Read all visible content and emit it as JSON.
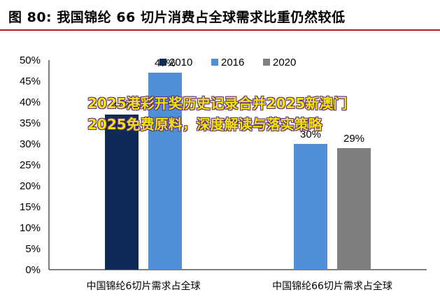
{
  "title": "图 80:  我国锦纶 66 切片消费占全球需求比重仍然较低",
  "overlay_text": "2025港彩开奖历史记录合并2025新澳门2025免费原料，深度解读与落实策略",
  "chart_data": {
    "type": "bar",
    "categories": [
      "中国锦纶6切片需求占全球",
      "中国锦纶66切片需求占全球"
    ],
    "series": [
      {
        "name": "2010",
        "values": [
          37,
          null
        ],
        "labels": [
          "37%",
          ""
        ],
        "color": "#0f2a57"
      },
      {
        "name": "2016",
        "values": [
          47,
          30
        ],
        "labels": [
          "47%",
          "30%"
        ],
        "color": "#4f8fd6"
      },
      {
        "name": "2020",
        "values": [
          null,
          29
        ],
        "labels": [
          "",
          "29%"
        ],
        "color": "#7f7f7f"
      }
    ],
    "yticks": [
      "0%",
      "5%",
      "10%",
      "15%",
      "20%",
      "25%",
      "30%",
      "35%",
      "40%",
      "45%",
      "50%"
    ],
    "ylim": [
      0,
      50
    ],
    "legend_position": "top"
  }
}
